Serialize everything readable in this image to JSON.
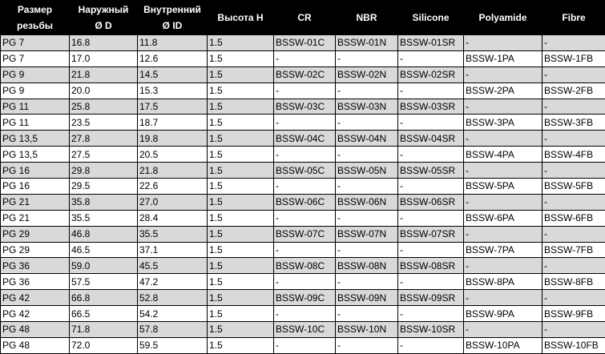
{
  "headers": [
    [
      "Размер",
      "резьбы"
    ],
    [
      "Наружный",
      "Ø D"
    ],
    [
      "Внутренний",
      "Ø ID"
    ],
    [
      "Высота H"
    ],
    [
      "CR"
    ],
    [
      "NBR"
    ],
    [
      "Silicone"
    ],
    [
      "Polyamide"
    ],
    [
      "Fibre"
    ]
  ],
  "rows": [
    [
      "PG 7",
      "16.8",
      "11.8",
      "1.5",
      "BSSW-01C",
      "BSSW-01N",
      "BSSW-01SR",
      "-",
      "-"
    ],
    [
      "PG 7",
      "17.0",
      "12.6",
      "1.5",
      "-",
      "-",
      "-",
      "BSSW-1PA",
      "BSSW-1FB"
    ],
    [
      "PG 9",
      "21.8",
      "14.5",
      "1.5",
      "BSSW-02C",
      "BSSW-02N",
      "BSSW-02SR",
      "-",
      "-"
    ],
    [
      "PG 9",
      "20.0",
      "15.3",
      "1.5",
      "-",
      "-",
      "-",
      "BSSW-2PA",
      "BSSW-2FB"
    ],
    [
      "PG 11",
      "25.8",
      "17.5",
      "1.5",
      "BSSW-03C",
      "BSSW-03N",
      "BSSW-03SR",
      "-",
      "-"
    ],
    [
      "PG 11",
      "23.5",
      "18.7",
      "1.5",
      "-",
      "-",
      "-",
      "BSSW-3PA",
      "BSSW-3FB"
    ],
    [
      "PG 13,5",
      "27.8",
      "19.8",
      "1.5",
      "BSSW-04C",
      "BSSW-04N",
      "BSSW-04SR",
      "-",
      "-"
    ],
    [
      "PG 13,5",
      "27.5",
      "20.5",
      "1.5",
      "-",
      "-",
      "-",
      "BSSW-4PA",
      "BSSW-4FB"
    ],
    [
      "PG 16",
      "29.8",
      "21.8",
      "1.5",
      "BSSW-05C",
      "BSSW-05N",
      "BSSW-05SR",
      "-",
      "-"
    ],
    [
      "PG 16",
      "29.5",
      "22.6",
      "1.5",
      "-",
      "-",
      "-",
      "BSSW-5PA",
      "BSSW-5FB"
    ],
    [
      "PG 21",
      "35.8",
      "27.0",
      "1.5",
      "BSSW-06C",
      "BSSW-06N",
      "BSSW-06SR",
      "-",
      "-"
    ],
    [
      "PG 21",
      "35.5",
      "28.4",
      "1.5",
      "-",
      "-",
      "-",
      "BSSW-6PA",
      "BSSW-6FB"
    ],
    [
      "PG 29",
      "46.8",
      "35.5",
      "1.5",
      "BSSW-07C",
      "BSSW-07N",
      "BSSW-07SR",
      "-",
      "-"
    ],
    [
      "PG 29",
      "46.5",
      "37.1",
      "1.5",
      "-",
      "-",
      "-",
      "BSSW-7PA",
      "BSSW-7FB"
    ],
    [
      "PG 36",
      "59.0",
      "45.5",
      "1.5",
      "BSSW-08C",
      "BSSW-08N",
      "BSSW-08SR",
      "-",
      "-"
    ],
    [
      "PG 36",
      "57.5",
      "47.2",
      "1.5",
      "-",
      "-",
      "-",
      "BSSW-8PA",
      "BSSW-8FB"
    ],
    [
      "PG 42",
      "66.8",
      "52.8",
      "1.5",
      "BSSW-09C",
      "BSSW-09N",
      "BSSW-09SR",
      "-",
      "-"
    ],
    [
      "PG 42",
      "66.5",
      "54.2",
      "1.5",
      "-",
      "-",
      "-",
      "BSSW-9PA",
      "BSSW-9FB"
    ],
    [
      "PG 48",
      "71.8",
      "57.8",
      "1.5",
      "BSSW-10C",
      "BSSW-10N",
      "BSSW-10SR",
      "-",
      "-"
    ],
    [
      "PG 48",
      "72.0",
      "59.5",
      "1.5",
      "-",
      "-",
      "-",
      "BSSW-10PA",
      "BSSW-10FB"
    ]
  ],
  "colors": {
    "header_bg": "#000000",
    "header_text": "#ffffff",
    "stripe": "#d9d9d9"
  }
}
